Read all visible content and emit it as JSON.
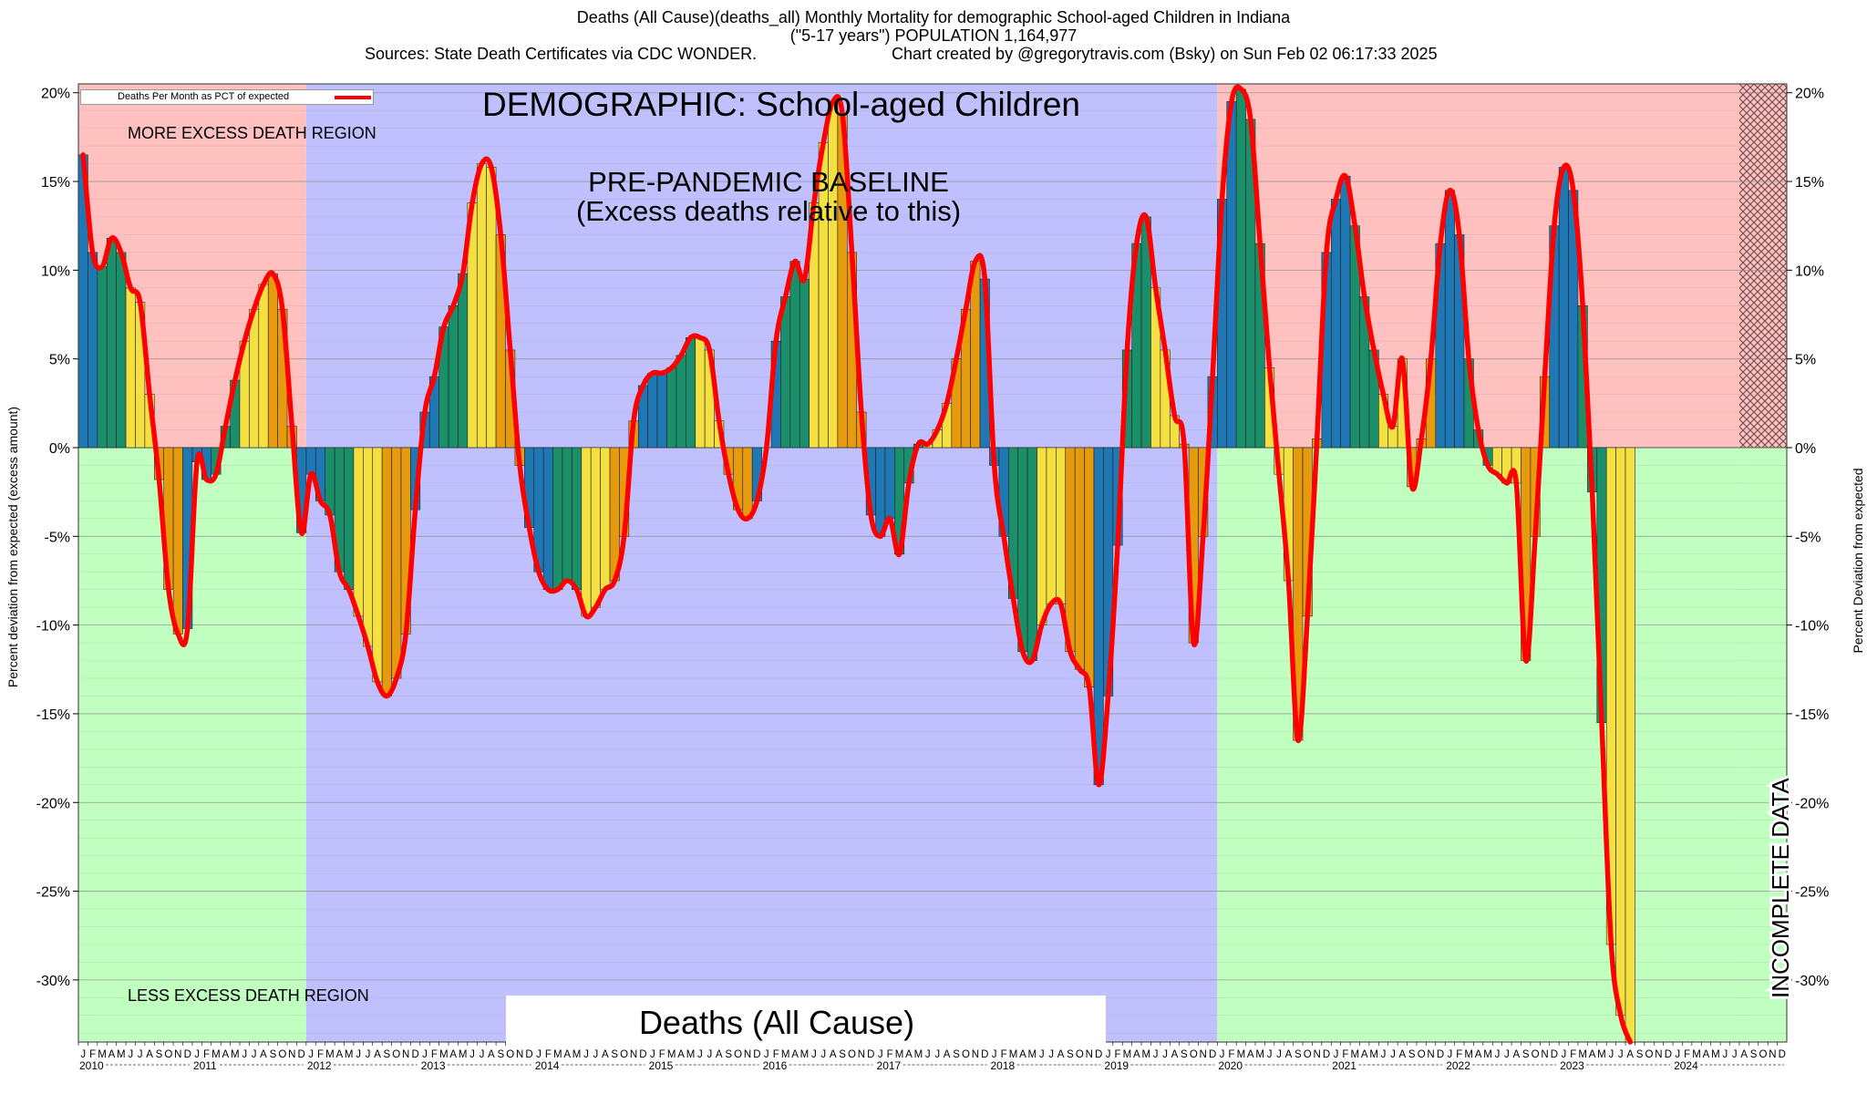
{
  "header": {
    "line1": "Deaths (All Cause)(deaths_all) Monthly Mortality for demographic School-aged Children in Indiana",
    "line2": "(\"5-17 years\") POPULATION 1,164,977",
    "line3_left": "Sources: State Death Certificates via CDC WONDER.",
    "line3_right": "Chart created by @gregorytravis.com (Bsky) on Sun Feb 02 06:17:33 2025"
  },
  "labels": {
    "demographic": "DEMOGRAPHIC: School-aged Children",
    "baseline_1": "PRE-PANDEMIC BASELINE",
    "baseline_2": "(Excess deaths relative to this)",
    "more_region": "MORE EXCESS DEATH REGION",
    "less_region": "LESS EXCESS DEATH REGION",
    "metric": "Deaths (All Cause)",
    "incomplete": "INCOMPLETE DATA",
    "legend": "Deaths Per Month as PCT of expected"
  },
  "colors": {
    "more_region": "#ffc0c0",
    "less_region": "#c0ffc0",
    "baseline_region": "#c0c0ff",
    "line": "#ff0000",
    "season": [
      "#1f77b4",
      "#1a8f6a",
      "#f5e042",
      "#e69a0e"
    ]
  },
  "chart_data": {
    "type": "bar",
    "title": "Deaths (All Cause)(deaths_all) Monthly Mortality for demographic School-aged Children in Indiana",
    "ylabel_left": "Percent deviation from expected (excess amount)",
    "ylabel_right": "Percent Deviation from expected",
    "ylim": [
      -33.5,
      20.5
    ],
    "yticks": [
      20,
      15,
      10,
      5,
      0,
      -5,
      -10,
      -15,
      -20,
      -25,
      -30
    ],
    "ytick_labels": [
      "20%",
      "15%",
      "10%",
      "5%",
      "0%",
      "-5%",
      "-10%",
      "-15%",
      "-20%",
      "-25%",
      "-30%"
    ],
    "month_letters": [
      "J",
      "F",
      "M",
      "A",
      "M",
      "J",
      "J",
      "A",
      "S",
      "O",
      "N",
      "D"
    ],
    "years": [
      "2010",
      "2011",
      "2012",
      "2013",
      "2014",
      "2015",
      "2016",
      "2017",
      "2018",
      "2019",
      "2020",
      "2021",
      "2022",
      "2023",
      "2024"
    ],
    "start": "2010-01",
    "baseline_period": [
      "2012-01",
      "2019-12"
    ],
    "incomplete_from": "2024-08",
    "grid": true,
    "legend_position": "top-left",
    "series": [
      {
        "name": "Deaths Per Month as PCT of expected",
        "values": [
          16.5,
          11.0,
          10.2,
          11.8,
          11.0,
          9.0,
          8.2,
          3.0,
          -1.8,
          -8.0,
          -10.5,
          -10.2,
          -0.8,
          -1.8,
          -1.5,
          1.2,
          3.8,
          6.0,
          7.8,
          9.2,
          9.8,
          7.8,
          1.2,
          -4.8,
          -1.5,
          -3.0,
          -3.8,
          -7.0,
          -8.0,
          -9.5,
          -11.2,
          -13.2,
          -14.0,
          -13.0,
          -10.5,
          -3.5,
          2.0,
          4.0,
          6.8,
          8.0,
          9.8,
          13.8,
          16.0,
          15.8,
          12.0,
          5.5,
          -1.0,
          -4.5,
          -7.0,
          -8.0,
          -8.0,
          -7.5,
          -8.0,
          -9.5,
          -9.0,
          -8.0,
          -7.5,
          -5.0,
          1.5,
          3.5,
          4.2,
          4.2,
          4.5,
          5.2,
          6.2,
          6.2,
          5.5,
          1.5,
          -1.5,
          -3.5,
          -4.0,
          -3.0,
          0.0,
          6.0,
          8.5,
          10.5,
          9.5,
          13.8,
          17.2,
          19.5,
          18.8,
          11.0,
          2.0,
          -3.8,
          -5.0,
          -4.0,
          -6.0,
          -2.0,
          0.2,
          0.2,
          1.0,
          2.5,
          5.0,
          7.8,
          10.5,
          9.5,
          -1.0,
          -5.0,
          -8.5,
          -11.5,
          -12.0,
          -10.0,
          -8.8,
          -8.8,
          -11.5,
          -12.5,
          -13.5,
          -19.0,
          -14.0,
          -5.5,
          5.5,
          11.5,
          13.0,
          9.0,
          5.5,
          1.8,
          0.2,
          -11.0,
          -5.0,
          4.0,
          14.0,
          19.5,
          20.2,
          18.5,
          11.5,
          4.5,
          -1.5,
          -7.5,
          -16.5,
          -9.5,
          0.5,
          11.0,
          14.0,
          15.3,
          12.5,
          8.5,
          5.5,
          3.0,
          1.2,
          5.0,
          -2.2,
          0.5,
          5.0,
          11.5,
          14.5,
          12.0,
          5.0,
          1.0,
          -1.0,
          -1.5,
          -2.0,
          -2.0,
          -12.0,
          -5.0,
          4.0,
          12.5,
          15.8,
          14.5,
          8.0,
          -2.5,
          -15.5,
          -28.0,
          -32.0,
          -33.5
        ]
      }
    ]
  }
}
